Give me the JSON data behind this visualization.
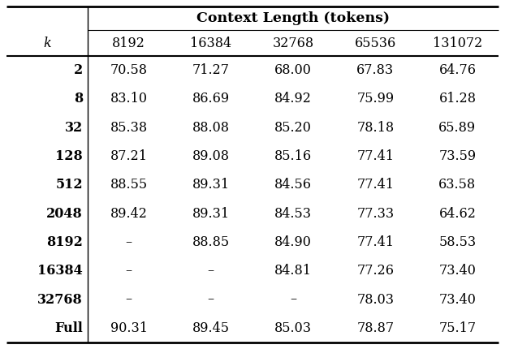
{
  "header_main": "Context Length (tokens)",
  "col_header": "k",
  "columns": [
    "8192",
    "16384",
    "32768",
    "65536",
    "131072"
  ],
  "rows": [
    {
      "k": "2",
      "vals": [
        "70.58",
        "71.27",
        "68.00",
        "67.83",
        "64.76"
      ]
    },
    {
      "k": "8",
      "vals": [
        "83.10",
        "86.69",
        "84.92",
        "75.99",
        "61.28"
      ]
    },
    {
      "k": "32",
      "vals": [
        "85.38",
        "88.08",
        "85.20",
        "78.18",
        "65.89"
      ]
    },
    {
      "k": "128",
      "vals": [
        "87.21",
        "89.08",
        "85.16",
        "77.41",
        "73.59"
      ]
    },
    {
      "k": "512",
      "vals": [
        "88.55",
        "89.31",
        "84.56",
        "77.41",
        "63.58"
      ]
    },
    {
      "k": "2048",
      "vals": [
        "89.42",
        "89.31",
        "84.53",
        "77.33",
        "64.62"
      ]
    },
    {
      "k": "8192",
      "vals": [
        "–",
        "88.85",
        "84.90",
        "77.41",
        "58.53"
      ]
    },
    {
      "k": "16384",
      "vals": [
        "–",
        "–",
        "84.81",
        "77.26",
        "73.40"
      ]
    },
    {
      "k": "32768",
      "vals": [
        "–",
        "–",
        "–",
        "78.03",
        "73.40"
      ]
    },
    {
      "k": "Full",
      "vals": [
        "90.31",
        "89.45",
        "85.03",
        "78.87",
        "75.17"
      ]
    }
  ],
  "bg_color": "#ffffff",
  "text_color": "#000000",
  "font_size_header": 12.5,
  "font_size_col_header": 11.5,
  "font_size_cell": 11.5
}
